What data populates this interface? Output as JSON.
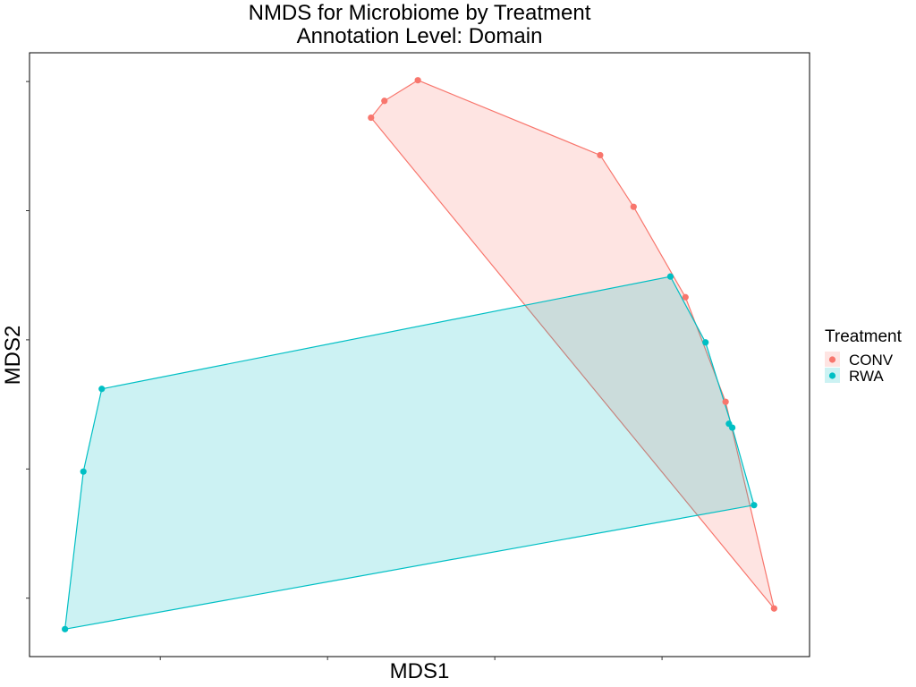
{
  "chart_data": {
    "type": "scatter",
    "title": "NMDS for Microbiome by Treatment",
    "subtitle": "Annotation Level: Domain",
    "xlabel": "MDS1",
    "ylabel": "MDS2",
    "grid": false,
    "hull": true,
    "legend": {
      "title": "Treatment",
      "placement": "right"
    },
    "series": [
      {
        "name": "CONV",
        "color": "#F8766D",
        "points": [
          [
            -0.74,
            1.72
          ],
          [
            -0.66,
            1.85
          ],
          [
            -0.46,
            2.01
          ],
          [
            0.63,
            1.43
          ],
          [
            0.83,
            1.03
          ],
          [
            1.14,
            0.33
          ],
          [
            1.38,
            -0.48
          ],
          [
            1.67,
            -2.08
          ]
        ]
      },
      {
        "name": "RWA",
        "color": "#00BFC4",
        "points": [
          [
            -2.35,
            -0.38
          ],
          [
            -2.46,
            -1.02
          ],
          [
            -2.57,
            -2.24
          ],
          [
            1.05,
            0.49
          ],
          [
            1.26,
            -0.02
          ],
          [
            1.4,
            -0.65
          ],
          [
            1.42,
            -0.68
          ],
          [
            1.55,
            -1.28
          ]
        ]
      }
    ]
  }
}
